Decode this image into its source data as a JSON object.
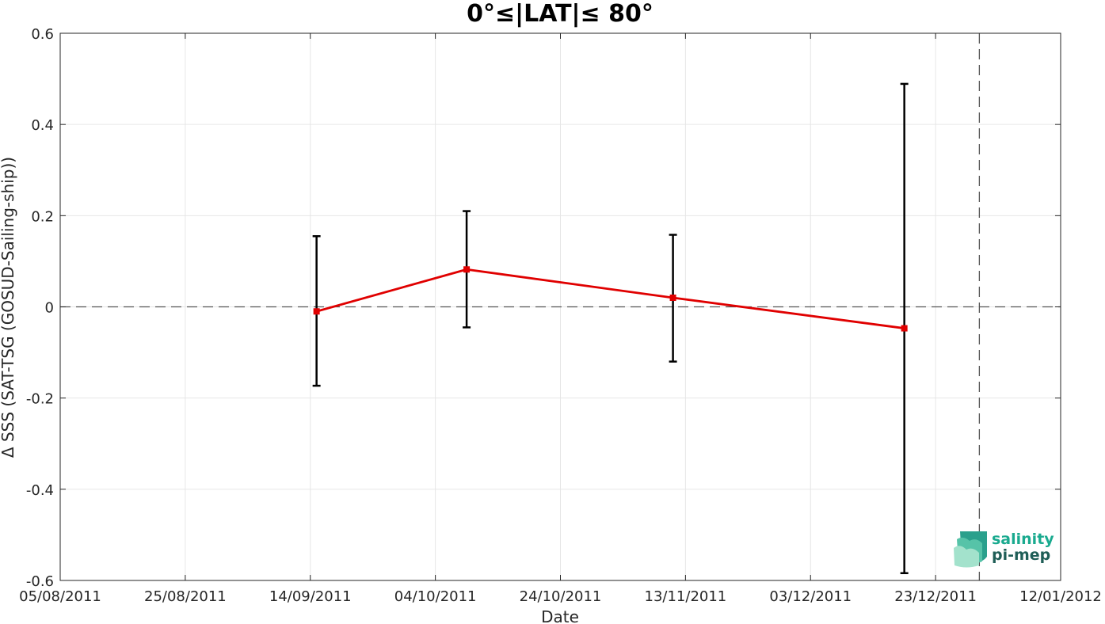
{
  "chart_data": {
    "type": "line",
    "title": "0°≤|LAT|≤ 80°",
    "xlabel": "Date",
    "ylabel": "Δ SSS (SAT-TSG (GOSUD-Sailing-ship))",
    "x_tick_labels": [
      "05/08/2011",
      "25/08/2011",
      "14/09/2011",
      "04/10/2011",
      "24/10/2011",
      "13/11/2011",
      "03/12/2011",
      "23/12/2011",
      "12/01/2012"
    ],
    "y_tick_labels": [
      "0.6",
      "0.4",
      "0.2",
      "0",
      "-0.2",
      "-0.4",
      "-0.6"
    ],
    "xlim": [
      "2011-08-05",
      "2012-01-12"
    ],
    "ylim": [
      -0.6,
      0.6
    ],
    "grid": true,
    "series": [
      {
        "x": [
          "2011-09-15",
          "2011-10-09",
          "2011-11-11",
          "2011-12-18"
        ],
        "y": [
          -0.01,
          0.082,
          0.02,
          -0.047
        ],
        "error_low": [
          -0.173,
          -0.045,
          -0.12,
          -0.584
        ],
        "error_high": [
          0.155,
          0.21,
          0.158,
          0.489
        ],
        "color": "#e00000"
      }
    ],
    "reference_line": {
      "y": 0,
      "style": "dashed",
      "color": "#555555"
    },
    "vertical_marker": {
      "x": "2011-12-30",
      "style": "dashed",
      "color": "#555555"
    },
    "errorbar_color": "#000000"
  },
  "logo": {
    "line1": "salinity",
    "line2": "pi-mep",
    "color1": "#1aaa8f",
    "color2": "#1f5e57"
  }
}
